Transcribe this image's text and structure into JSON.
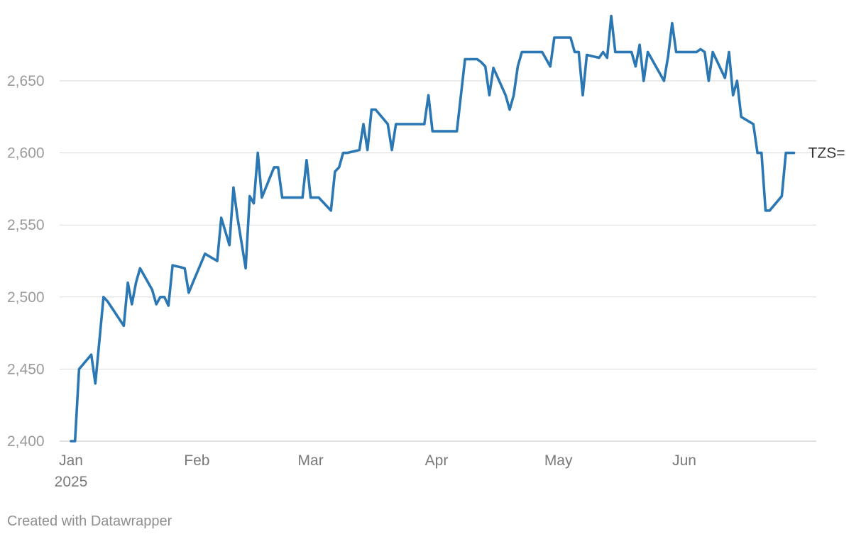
{
  "chart_data": {
    "type": "line",
    "title": "",
    "xlabel": "",
    "ylabel": "",
    "grid": true,
    "ylim": [
      2400,
      2700
    ],
    "y_ticks": [
      2400,
      2450,
      2500,
      2550,
      2600,
      2650
    ],
    "y_tick_labels": [
      "2,400",
      "2,450",
      "2,500",
      "2,550",
      "2,600",
      "2,650"
    ],
    "xlim": [
      "2025-01-01",
      "2025-06-30"
    ],
    "x_ticks": [
      {
        "date": "2025-01-01",
        "label": "Jan",
        "sublabel": "2025"
      },
      {
        "date": "2025-02-01",
        "label": "Feb",
        "sublabel": ""
      },
      {
        "date": "2025-03-01",
        "label": "Mar",
        "sublabel": ""
      },
      {
        "date": "2025-04-01",
        "label": "Apr",
        "sublabel": ""
      },
      {
        "date": "2025-05-01",
        "label": "May",
        "sublabel": ""
      },
      {
        "date": "2025-06-01",
        "label": "Jun",
        "sublabel": ""
      }
    ],
    "series": [
      {
        "name": "TZS=",
        "color": "#2a77b4",
        "points": [
          [
            "2025-01-01",
            2400
          ],
          [
            "2025-01-02",
            2400
          ],
          [
            "2025-01-03",
            2450
          ],
          [
            "2025-01-06",
            2460
          ],
          [
            "2025-01-07",
            2440
          ],
          [
            "2025-01-08",
            2470
          ],
          [
            "2025-01-09",
            2500
          ],
          [
            "2025-01-10",
            2497
          ],
          [
            "2025-01-14",
            2480
          ],
          [
            "2025-01-15",
            2510
          ],
          [
            "2025-01-16",
            2495
          ],
          [
            "2025-01-17",
            2510
          ],
          [
            "2025-01-18",
            2520
          ],
          [
            "2025-01-21",
            2505
          ],
          [
            "2025-01-22",
            2495
          ],
          [
            "2025-01-23",
            2500
          ],
          [
            "2025-01-24",
            2500
          ],
          [
            "2025-01-25",
            2494
          ],
          [
            "2025-01-26",
            2522
          ],
          [
            "2025-01-29",
            2520
          ],
          [
            "2025-01-30",
            2503
          ],
          [
            "2025-01-31",
            2510
          ],
          [
            "2025-02-03",
            2530
          ],
          [
            "2025-02-06",
            2525
          ],
          [
            "2025-02-07",
            2555
          ],
          [
            "2025-02-09",
            2536
          ],
          [
            "2025-02-10",
            2576
          ],
          [
            "2025-02-11",
            2555
          ],
          [
            "2025-02-13",
            2520
          ],
          [
            "2025-02-14",
            2570
          ],
          [
            "2025-02-15",
            2565
          ],
          [
            "2025-02-16",
            2600
          ],
          [
            "2025-02-17",
            2569
          ],
          [
            "2025-02-20",
            2590
          ],
          [
            "2025-02-21",
            2590
          ],
          [
            "2025-02-22",
            2569
          ],
          [
            "2025-02-27",
            2569
          ],
          [
            "2025-02-28",
            2595
          ],
          [
            "2025-03-01",
            2569
          ],
          [
            "2025-03-03",
            2569
          ],
          [
            "2025-03-06",
            2560
          ],
          [
            "2025-03-07",
            2587
          ],
          [
            "2025-03-08",
            2590
          ],
          [
            "2025-03-09",
            2600
          ],
          [
            "2025-03-10",
            2600
          ],
          [
            "2025-03-13",
            2602
          ],
          [
            "2025-03-14",
            2620
          ],
          [
            "2025-03-15",
            2602
          ],
          [
            "2025-03-16",
            2630
          ],
          [
            "2025-03-17",
            2630
          ],
          [
            "2025-03-20",
            2620
          ],
          [
            "2025-03-21",
            2602
          ],
          [
            "2025-03-22",
            2620
          ],
          [
            "2025-03-29",
            2620
          ],
          [
            "2025-03-30",
            2640
          ],
          [
            "2025-03-31",
            2615
          ],
          [
            "2025-04-06",
            2615
          ],
          [
            "2025-04-08",
            2665
          ],
          [
            "2025-04-11",
            2665
          ],
          [
            "2025-04-12",
            2663
          ],
          [
            "2025-04-13",
            2660
          ],
          [
            "2025-04-14",
            2640
          ],
          [
            "2025-04-15",
            2659
          ],
          [
            "2025-04-18",
            2640
          ],
          [
            "2025-04-19",
            2630
          ],
          [
            "2025-04-20",
            2640
          ],
          [
            "2025-04-21",
            2660
          ],
          [
            "2025-04-22",
            2670
          ],
          [
            "2025-04-27",
            2670
          ],
          [
            "2025-04-29",
            2660
          ],
          [
            "2025-04-30",
            2680
          ],
          [
            "2025-05-04",
            2680
          ],
          [
            "2025-05-05",
            2670
          ],
          [
            "2025-05-06",
            2670
          ],
          [
            "2025-05-07",
            2640
          ],
          [
            "2025-05-08",
            2668
          ],
          [
            "2025-05-11",
            2666
          ],
          [
            "2025-05-12",
            2670
          ],
          [
            "2025-05-13",
            2666
          ],
          [
            "2025-05-14",
            2695
          ],
          [
            "2025-05-15",
            2670
          ],
          [
            "2025-05-19",
            2670
          ],
          [
            "2025-05-20",
            2660
          ],
          [
            "2025-05-21",
            2675
          ],
          [
            "2025-05-22",
            2650
          ],
          [
            "2025-05-23",
            2670
          ],
          [
            "2025-05-27",
            2650
          ],
          [
            "2025-05-28",
            2667
          ],
          [
            "2025-05-29",
            2690
          ],
          [
            "2025-05-30",
            2670
          ],
          [
            "2025-06-04",
            2670
          ],
          [
            "2025-06-05",
            2672
          ],
          [
            "2025-06-06",
            2670
          ],
          [
            "2025-06-07",
            2650
          ],
          [
            "2025-06-08",
            2670
          ],
          [
            "2025-06-11",
            2652
          ],
          [
            "2025-06-12",
            2670
          ],
          [
            "2025-06-13",
            2640
          ],
          [
            "2025-06-14",
            2650
          ],
          [
            "2025-06-15",
            2625
          ],
          [
            "2025-06-18",
            2620
          ],
          [
            "2025-06-19",
            2600
          ],
          [
            "2025-06-20",
            2600
          ],
          [
            "2025-06-21",
            2560
          ],
          [
            "2025-06-22",
            2560
          ],
          [
            "2025-06-25",
            2570
          ],
          [
            "2025-06-26",
            2600
          ],
          [
            "2025-06-28",
            2600
          ]
        ]
      }
    ]
  },
  "footer": {
    "credit": "Created with Datawrapper"
  }
}
